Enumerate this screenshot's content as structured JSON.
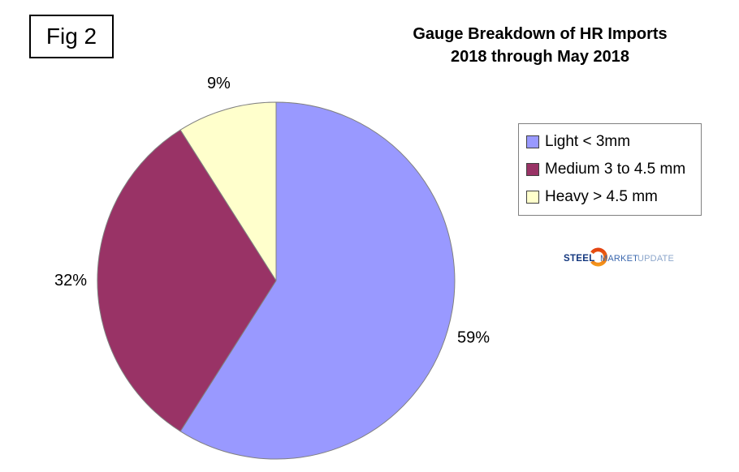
{
  "figure_label": "Fig 2",
  "title": {
    "line1": "Gauge Breakdown of HR Imports",
    "line2": "2018 through May 2018"
  },
  "chart_data": {
    "type": "pie",
    "title": "Gauge Breakdown of HR Imports 2018 through May 2018",
    "start_angle_deg": 0,
    "direction": "clockwise",
    "slices": [
      {
        "name": "light",
        "label": "Light < 3mm",
        "value": 59,
        "display": "59%",
        "color": "#9999FF"
      },
      {
        "name": "medium",
        "label": "Medium 3 to 4.5 mm",
        "value": 32,
        "display": "32%",
        "color": "#993366"
      },
      {
        "name": "heavy",
        "label": "Heavy > 4.5 mm",
        "value": 9,
        "display": "9%",
        "color": "#FFFFCC"
      }
    ],
    "slice_border_color": "#808080",
    "legend_position": "right",
    "label_position": "outside"
  },
  "legend": {
    "items": [
      {
        "label": "Light < 3mm",
        "color": "#9999FF"
      },
      {
        "label": "Medium 3 to 4.5 mm",
        "color": "#993366"
      },
      {
        "label": "Heavy > 4.5 mm",
        "color": "#FFFFCC"
      }
    ]
  },
  "logo": {
    "word1": "STEEL",
    "word2": "MARKET",
    "word3": "UPDATE",
    "colors": {
      "word1": "#14387F",
      "word2": "#3A67AE",
      "word3": "#8CA6CB",
      "crescent_top": "#E23B0E",
      "crescent_bottom": "#F59E1D"
    }
  }
}
